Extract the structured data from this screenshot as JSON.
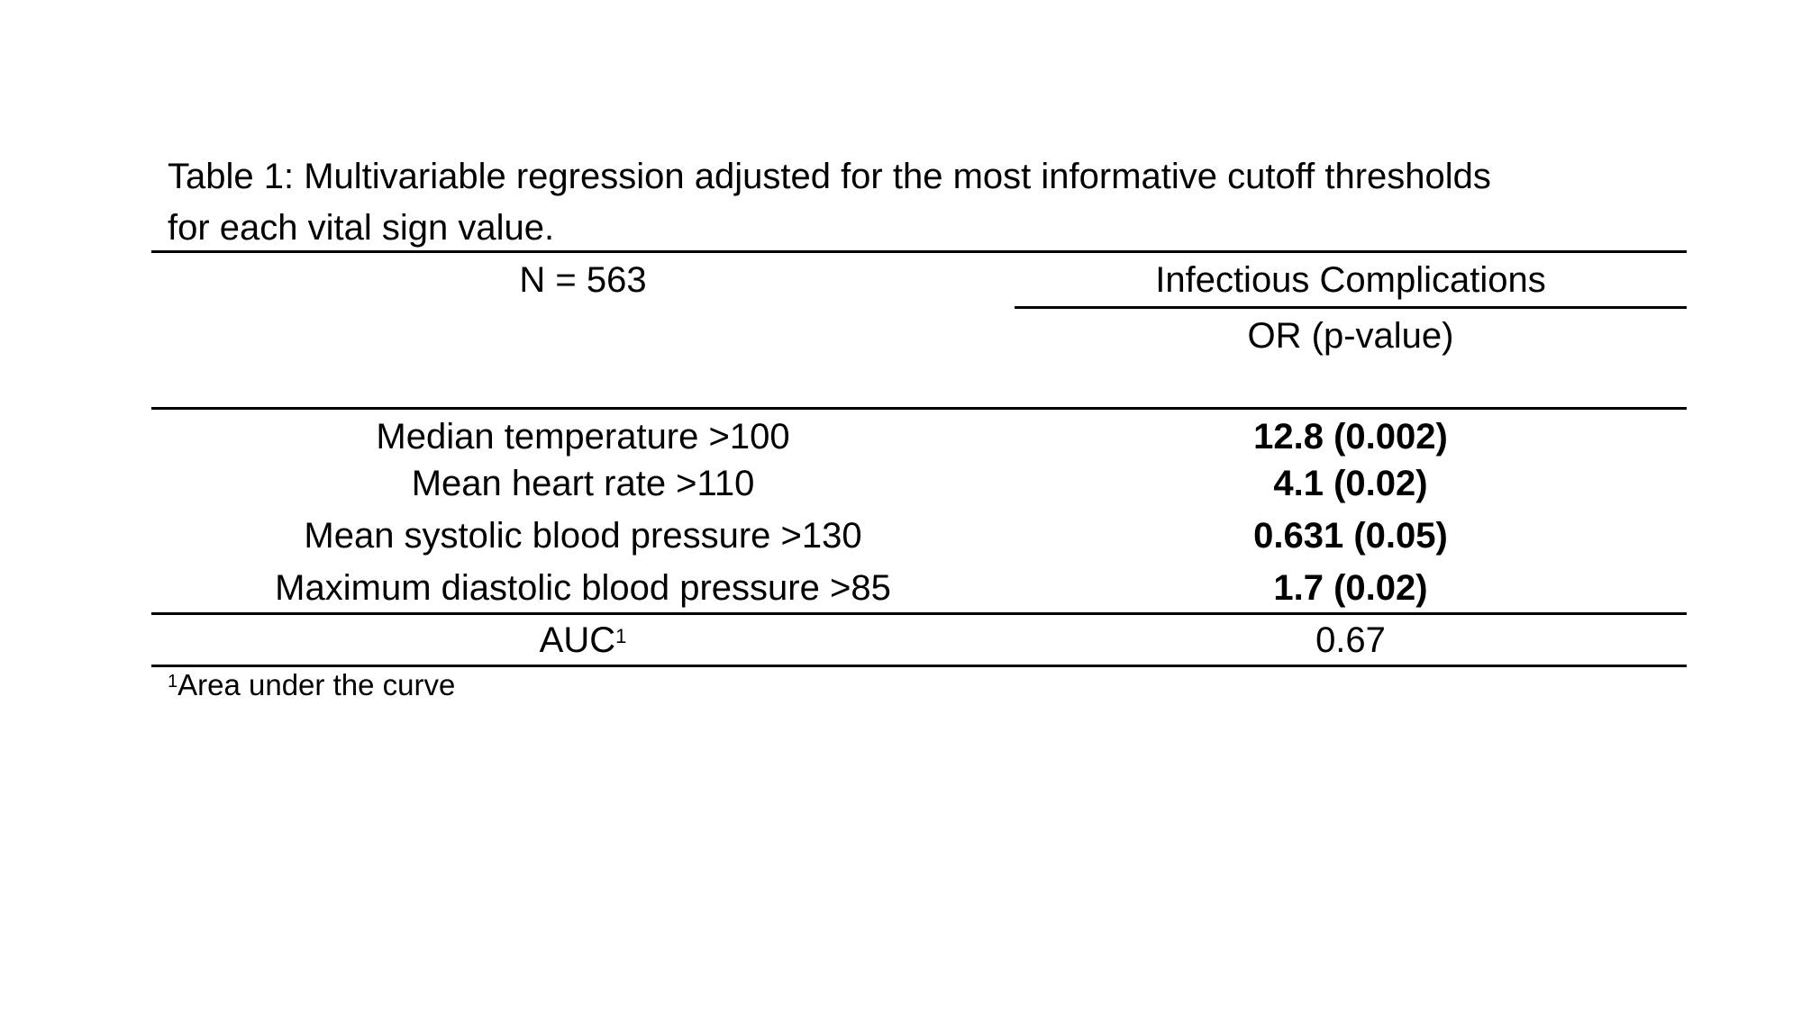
{
  "caption": {
    "line1": "Table 1: Multivariable regression adjusted for the most informative cutoff thresholds",
    "line2": "for each vital sign value."
  },
  "header": {
    "n_label": "N = 563",
    "outcome_label": "Infectious Complications",
    "stat_label": "OR (p-value)"
  },
  "rows": [
    {
      "variable": "Median temperature >100",
      "value": "12.8 (0.002)"
    },
    {
      "variable": "Mean heart rate >110",
      "value": "4.1 (0.02)"
    },
    {
      "variable": "Mean systolic blood pressure >130",
      "value": "0.631 (0.05)"
    },
    {
      "variable": "Maximum diastolic blood pressure >85",
      "value": "1.7 (0.02)"
    }
  ],
  "auc": {
    "label": "AUC",
    "superscript": "1",
    "value": "0.67"
  },
  "footnote": {
    "marker": "1",
    "text": "Area under the curve"
  }
}
